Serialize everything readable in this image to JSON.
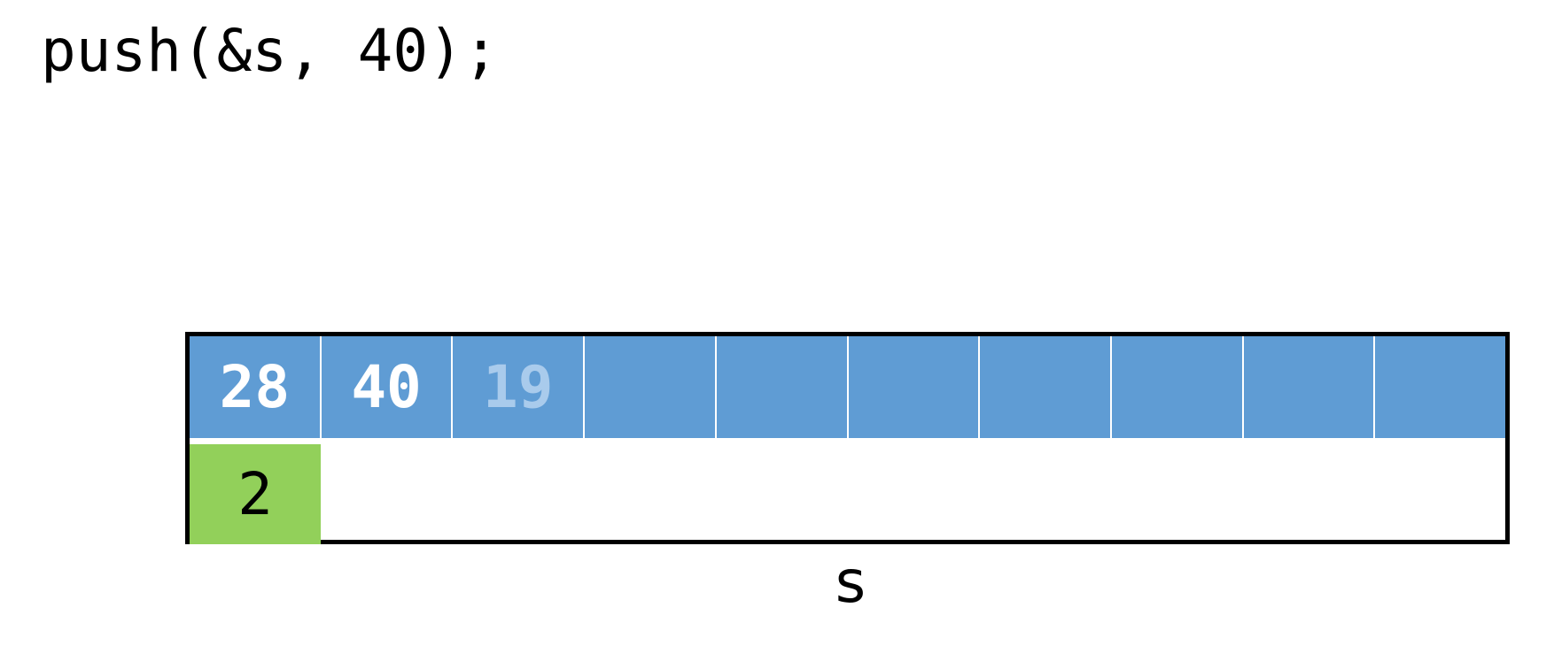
{
  "code_line": "push(&s, 40);",
  "stack": {
    "array": [
      "28",
      "40",
      "19",
      "",
      "",
      "",
      "",
      "",
      "",
      ""
    ],
    "array_faded": [
      false,
      false,
      true,
      false,
      false,
      false,
      false,
      false,
      false,
      false
    ],
    "top": "2",
    "name": "s"
  },
  "colors": {
    "array_fill": "#5f9cd4",
    "array_text": "#ffffff",
    "faded_text": "#a9cbec",
    "top_fill": "#92d05a",
    "border": "#000000"
  }
}
